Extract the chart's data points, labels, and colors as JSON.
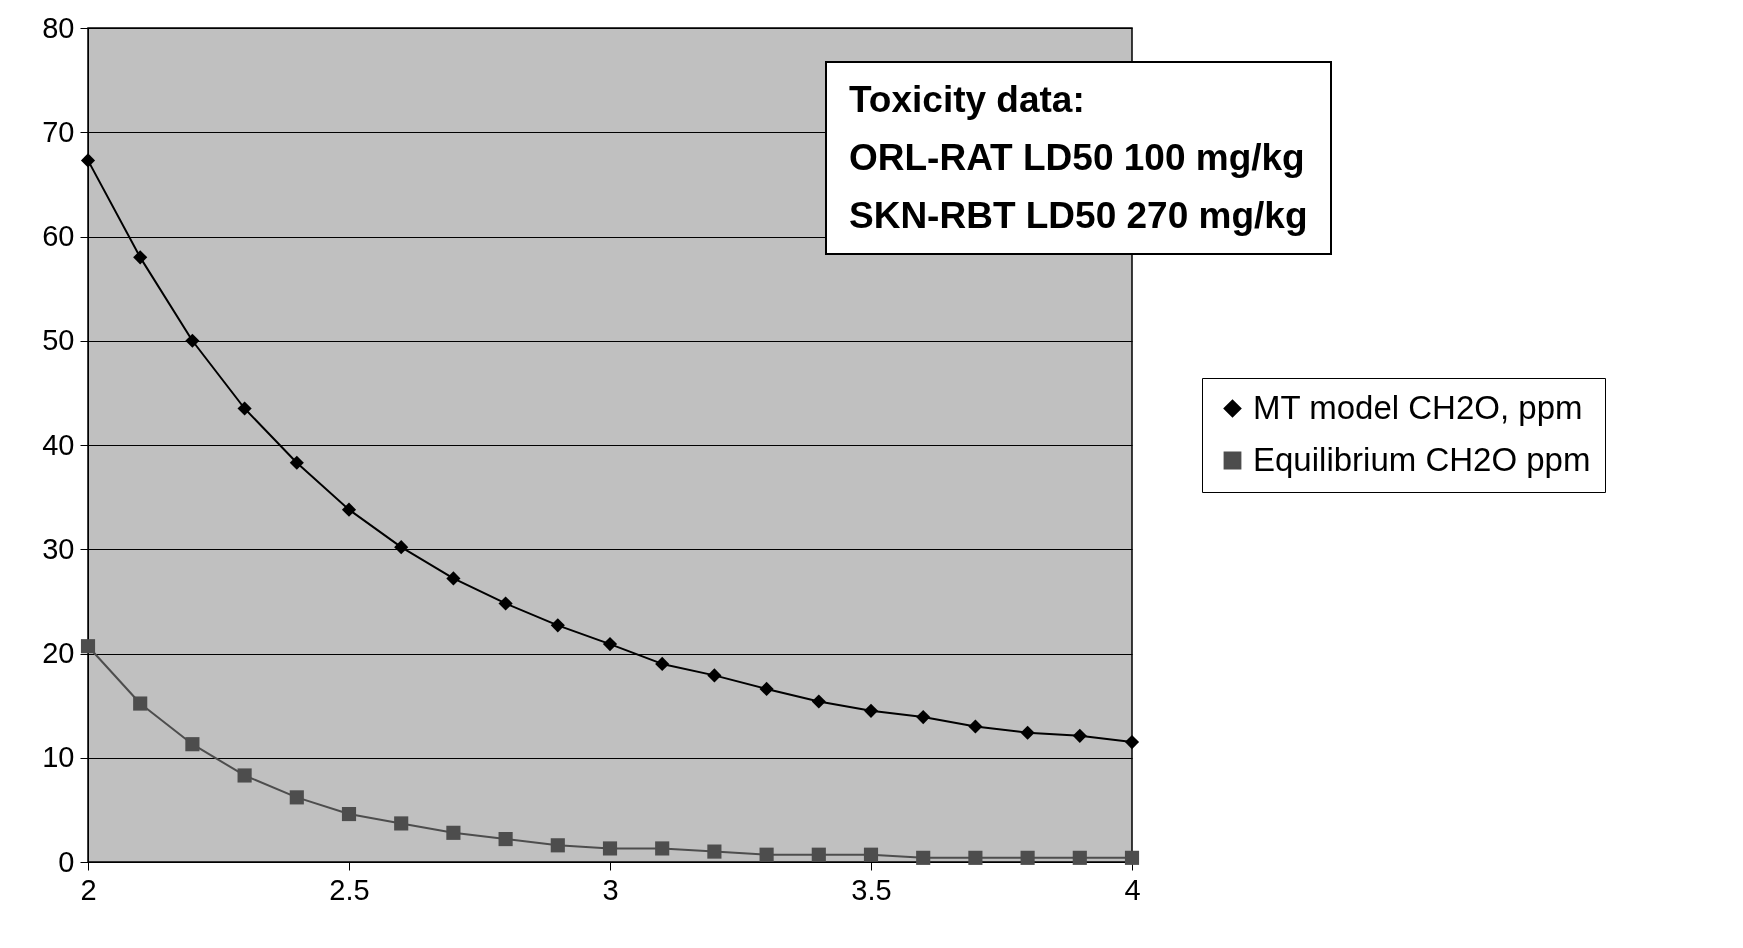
{
  "chart_data": {
    "type": "line",
    "x": [
      2,
      2.1,
      2.2,
      2.3,
      2.4,
      2.5,
      2.6,
      2.7,
      2.8,
      2.9,
      3,
      3.1,
      3.2,
      3.3,
      3.4,
      3.5,
      3.6,
      3.7,
      3.8,
      3.9,
      4
    ],
    "series": [
      {
        "name": "MT model CH2O, ppm",
        "color": "#000000",
        "marker": "diamond",
        "values": [
          67.3,
          58,
          50,
          43.5,
          38.3,
          33.8,
          30.2,
          27.2,
          24.8,
          22.7,
          20.9,
          19,
          17.9,
          16.6,
          15.4,
          14.5,
          13.9,
          13,
          12.4,
          12.1,
          11.5
        ]
      },
      {
        "name": "Equilibrium CH2O ppm",
        "color": "#4d4d4d",
        "marker": "square",
        "values": [
          20.7,
          15.2,
          11.3,
          8.3,
          6.2,
          4.6,
          3.7,
          2.8,
          2.2,
          1.6,
          1.3,
          1.3,
          1.0,
          0.7,
          0.7,
          0.7,
          0.4,
          0.4,
          0.4,
          0.4,
          0.4
        ]
      }
    ],
    "xlim": [
      2,
      4
    ],
    "xticks": [
      2,
      2.5,
      3,
      3.5,
      4
    ],
    "ylim": [
      0,
      80
    ],
    "yticks": [
      0,
      10,
      20,
      30,
      40,
      50,
      60,
      70,
      80
    ],
    "grid": "y",
    "legend": "right",
    "annotations": [
      "Toxicity data:",
      "ORL-RAT LD50 100 mg/kg",
      "SKN-RBT LD50 270 mg/kg"
    ]
  }
}
